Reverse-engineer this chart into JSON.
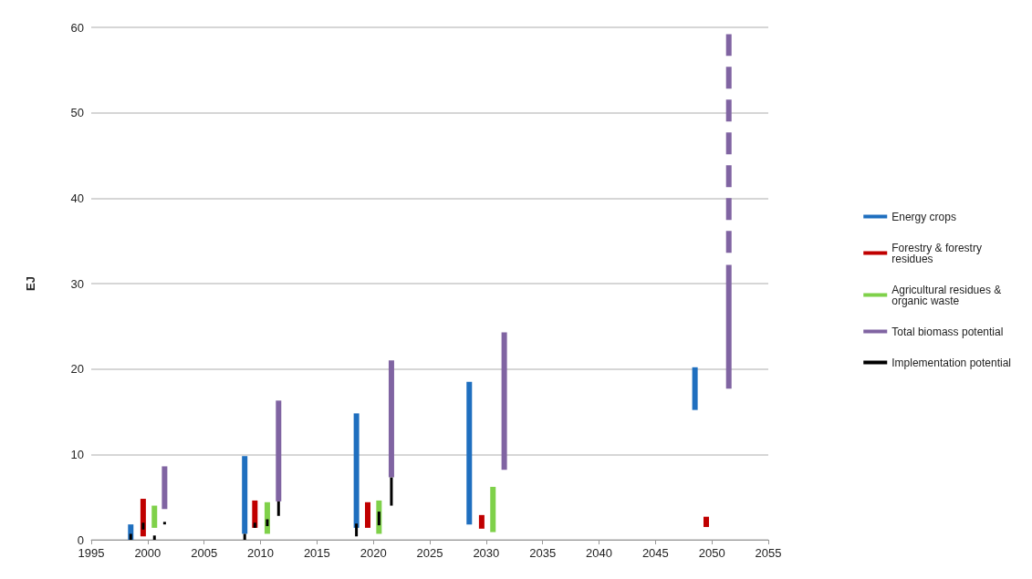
{
  "chart_data": {
    "type": "bar",
    "ylabel": "EJ",
    "xlim": [
      1995,
      2055
    ],
    "xticks": [
      1995,
      2000,
      2005,
      2010,
      2015,
      2020,
      2025,
      2030,
      2035,
      2040,
      2045,
      2050,
      2055
    ],
    "ylim": [
      0,
      60
    ],
    "yticks": [
      0,
      10,
      20,
      30,
      40,
      50,
      60
    ],
    "grid": "y",
    "legend": "right",
    "series": [
      {
        "name": "Energy crops",
        "color": "#1f6fbf",
        "x": [
          1998.5,
          2008.6,
          2018.5,
          2028.5,
          2048.5
        ],
        "base": [
          0,
          0.7,
          1.4,
          1.8,
          15.2
        ],
        "values": [
          1.8,
          9.1,
          13.4,
          16.7,
          5.0
        ]
      },
      {
        "name": "Forestry & forestry residues",
        "color": "#c00000",
        "x": [
          1999.6,
          2009.5,
          2019.5,
          2029.6,
          2049.5
        ],
        "base": [
          0.4,
          1.4,
          1.4,
          1.3,
          1.5
        ],
        "values": [
          4.4,
          3.2,
          3.0,
          1.6,
          1.2
        ]
      },
      {
        "name": "Agricultural residues & organic waste",
        "color": "#7fd14a",
        "x": [
          2000.6,
          2010.6,
          2020.5,
          2030.6
        ],
        "base": [
          1.4,
          0.7,
          0.7,
          0.9
        ],
        "values": [
          2.6,
          3.7,
          3.9,
          5.3
        ]
      },
      {
        "name": "Total biomass potential",
        "color": "#8064a2",
        "x": [
          2001.5,
          2011.6,
          2021.6,
          2031.6,
          2051.5
        ],
        "base": [
          3.6,
          4.5,
          7.3,
          8.2,
          17.7
        ],
        "values": [
          5.0,
          11.8,
          13.7,
          16.1,
          14.5
        ]
      },
      {
        "type": "line",
        "color": "#8064a2",
        "line_style": "dashed",
        "x": [
          2051.5,
          2051.5
        ],
        "values": [
          33.6,
          59.2
        ]
      },
      {
        "name": "Implementation potential",
        "color": "#000000",
        "x": [
          1998.5,
          1999.6,
          2000.6,
          2001.5,
          2008.6,
          2009.5,
          2010.6,
          2011.6,
          2018.5,
          2020.5,
          2021.6
        ],
        "base": [
          0,
          1.2,
          0,
          1.8,
          0,
          1.4,
          1.6,
          2.8,
          0.4,
          1.7,
          4.0
        ],
        "values": [
          0.7,
          0.8,
          0.5,
          0.3,
          0.7,
          0.6,
          0.8,
          1.7,
          1.5,
          1.6,
          3.3
        ]
      }
    ]
  }
}
